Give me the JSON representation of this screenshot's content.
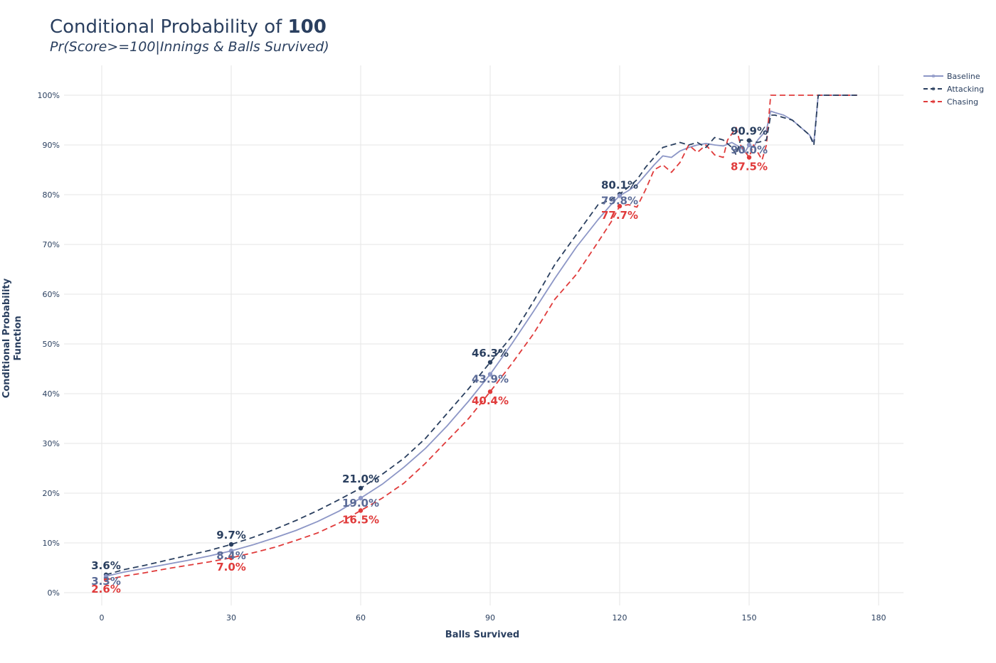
{
  "title": {
    "prefix": "Conditional Probability of ",
    "bold": "100",
    "subtitle": "Pr(Score>=100|Innings & Balls Survived)"
  },
  "chart_data": {
    "type": "line",
    "xlabel": "Balls Survived",
    "ylabel_line1": "Conditional Probability",
    "ylabel_line2": "Function",
    "xlim": [
      -8,
      185
    ],
    "ylim": [
      -0.01,
      1.06
    ],
    "x_ticks": [
      0,
      30,
      60,
      90,
      120,
      150,
      180
    ],
    "x_tick_labels": [
      "0",
      "30",
      "60",
      "90",
      "120",
      "150",
      "180"
    ],
    "y_ticks": [
      0,
      0.1,
      0.2,
      0.3,
      0.4,
      0.5,
      0.6,
      0.7,
      0.8,
      0.9,
      1.0
    ],
    "y_tick_labels": [
      "0%",
      "10%",
      "20%",
      "30%",
      "40%",
      "50%",
      "60%",
      "70%",
      "80%",
      "90%",
      "100%"
    ],
    "grid": true,
    "legend_position": "top-right",
    "series": [
      {
        "name": "Baseline",
        "color": "#8c96c6",
        "dash": "solid",
        "x": [
          1,
          5,
          10,
          15,
          20,
          25,
          30,
          35,
          40,
          45,
          50,
          55,
          60,
          65,
          70,
          75,
          80,
          85,
          90,
          95,
          100,
          105,
          110,
          115,
          118,
          120,
          122,
          124,
          126,
          128,
          130,
          132,
          134,
          136,
          138,
          140,
          142,
          144,
          146,
          148,
          149,
          150,
          151,
          152,
          153,
          154,
          155,
          156,
          158,
          160,
          162,
          164,
          165,
          166,
          168,
          170,
          172,
          175
        ],
        "y": [
          0.033,
          0.041,
          0.049,
          0.057,
          0.065,
          0.074,
          0.084,
          0.096,
          0.11,
          0.125,
          0.143,
          0.164,
          0.19,
          0.218,
          0.252,
          0.29,
          0.335,
          0.385,
          0.439,
          0.5,
          0.565,
          0.632,
          0.695,
          0.75,
          0.78,
          0.798,
          0.808,
          0.82,
          0.84,
          0.86,
          0.878,
          0.875,
          0.888,
          0.895,
          0.9,
          0.903,
          0.9,
          0.898,
          0.905,
          0.895,
          0.885,
          0.9,
          0.895,
          0.91,
          0.92,
          0.93,
          0.968,
          0.965,
          0.96,
          0.95,
          0.935,
          0.92,
          0.905,
          1.0,
          1.0,
          1.0,
          1.0,
          1.0
        ]
      },
      {
        "name": "Attacking",
        "color": "#2a3f5f",
        "dash": "8,5",
        "x": [
          1,
          5,
          10,
          15,
          20,
          25,
          30,
          35,
          40,
          45,
          50,
          55,
          60,
          65,
          70,
          75,
          80,
          85,
          90,
          95,
          100,
          105,
          110,
          115,
          118,
          120,
          122,
          124,
          126,
          128,
          130,
          132,
          134,
          136,
          138,
          140,
          142,
          144,
          146,
          147,
          148,
          150,
          152,
          154,
          155,
          156,
          158,
          160,
          162,
          164,
          165,
          166,
          168,
          170,
          172,
          175
        ],
        "y": [
          0.036,
          0.046,
          0.055,
          0.065,
          0.075,
          0.085,
          0.097,
          0.111,
          0.127,
          0.145,
          0.165,
          0.187,
          0.21,
          0.238,
          0.27,
          0.31,
          0.36,
          0.41,
          0.463,
          0.515,
          0.585,
          0.66,
          0.72,
          0.78,
          0.79,
          0.801,
          0.815,
          0.83,
          0.855,
          0.875,
          0.895,
          0.9,
          0.905,
          0.9,
          0.905,
          0.895,
          0.915,
          0.91,
          0.895,
          0.88,
          0.91,
          0.909,
          0.905,
          0.91,
          0.96,
          0.96,
          0.955,
          0.95,
          0.935,
          0.92,
          0.9,
          1.0,
          1.0,
          1.0,
          1.0,
          1.0
        ]
      },
      {
        "name": "Chasing",
        "color": "#e03b3b",
        "dash": "8,5",
        "x": [
          1,
          5,
          10,
          15,
          20,
          25,
          30,
          35,
          40,
          45,
          50,
          55,
          60,
          65,
          70,
          75,
          80,
          85,
          90,
          95,
          100,
          105,
          110,
          115,
          118,
          120,
          122,
          124,
          126,
          128,
          130,
          132,
          134,
          136,
          138,
          140,
          142,
          144,
          145,
          147,
          148,
          150,
          151,
          152,
          153,
          154,
          155,
          160,
          165,
          170,
          175
        ],
        "y": [
          0.026,
          0.033,
          0.04,
          0.048,
          0.055,
          0.062,
          0.07,
          0.08,
          0.091,
          0.105,
          0.12,
          0.14,
          0.165,
          0.19,
          0.22,
          0.26,
          0.305,
          0.35,
          0.404,
          0.46,
          0.52,
          0.59,
          0.64,
          0.705,
          0.745,
          0.777,
          0.78,
          0.775,
          0.81,
          0.85,
          0.86,
          0.845,
          0.865,
          0.9,
          0.885,
          0.9,
          0.88,
          0.875,
          0.91,
          0.935,
          0.9,
          0.875,
          0.9,
          0.885,
          0.87,
          0.9,
          1.0,
          1.0,
          1.0,
          1.0,
          1.0
        ]
      }
    ],
    "annotations": [
      {
        "x": 1,
        "series": "Attacking",
        "y": 0.036,
        "text": "3.6%",
        "pos": "above"
      },
      {
        "x": 1,
        "series": "Baseline",
        "y": 0.033,
        "text": "3.3%",
        "pos": "mid"
      },
      {
        "x": 1,
        "series": "Chasing",
        "y": 0.026,
        "text": "2.6%",
        "pos": "below"
      },
      {
        "x": 30,
        "series": "Attacking",
        "y": 0.097,
        "text": "9.7%",
        "pos": "above"
      },
      {
        "x": 30,
        "series": "Baseline",
        "y": 0.084,
        "text": "8.4%",
        "pos": "mid"
      },
      {
        "x": 30,
        "series": "Chasing",
        "y": 0.07,
        "text": "7.0%",
        "pos": "below"
      },
      {
        "x": 60,
        "series": "Attacking",
        "y": 0.21,
        "text": "21.0%",
        "pos": "above"
      },
      {
        "x": 60,
        "series": "Baseline",
        "y": 0.19,
        "text": "19.0%",
        "pos": "mid"
      },
      {
        "x": 60,
        "series": "Chasing",
        "y": 0.165,
        "text": "16.5%",
        "pos": "below"
      },
      {
        "x": 90,
        "series": "Attacking",
        "y": 0.463,
        "text": "46.3%",
        "pos": "above"
      },
      {
        "x": 90,
        "series": "Baseline",
        "y": 0.439,
        "text": "43.9%",
        "pos": "mid"
      },
      {
        "x": 90,
        "series": "Chasing",
        "y": 0.404,
        "text": "40.4%",
        "pos": "below"
      },
      {
        "x": 120,
        "series": "Attacking",
        "y": 0.801,
        "text": "80.1%",
        "pos": "above"
      },
      {
        "x": 120,
        "series": "Baseline",
        "y": 0.798,
        "text": "79.8%",
        "pos": "mid"
      },
      {
        "x": 120,
        "series": "Chasing",
        "y": 0.777,
        "text": "77.7%",
        "pos": "below"
      },
      {
        "x": 150,
        "series": "Attacking",
        "y": 0.909,
        "text": "90.9%",
        "pos": "above"
      },
      {
        "x": 150,
        "series": "Baseline",
        "y": 0.9,
        "text": "90.0%",
        "pos": "mid"
      },
      {
        "x": 150,
        "series": "Chasing",
        "y": 0.875,
        "text": "87.5%",
        "pos": "below"
      }
    ],
    "label_colors": {
      "Attacking": "#2a3f5f",
      "Baseline": "#5a6a96",
      "Chasing": "#e03b3b"
    }
  }
}
